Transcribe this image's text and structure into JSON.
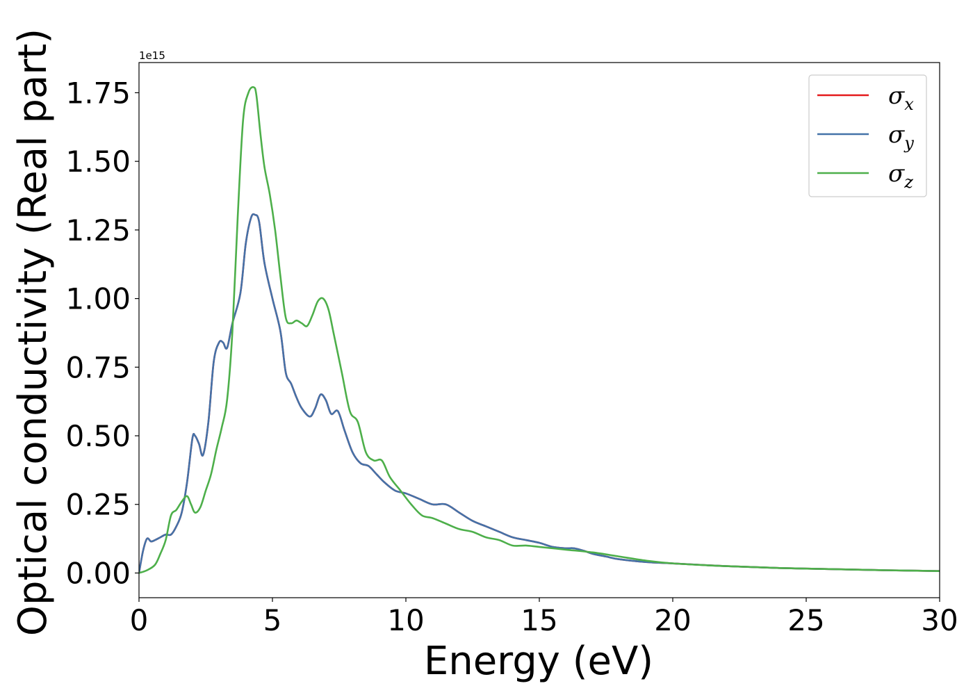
{
  "chart_data": {
    "type": "line",
    "xlabel": "Energy (eV)",
    "ylabel": "Optical conductivity (Real part)",
    "y_offset_label": "1e15",
    "xlim": [
      0,
      30
    ],
    "ylim": [
      -0.09,
      1.86
    ],
    "xticks": [
      0,
      5,
      10,
      15,
      20,
      25,
      30
    ],
    "xtick_labels": [
      "0",
      "5",
      "10",
      "15",
      "20",
      "25",
      "30"
    ],
    "yticks": [
      0.0,
      0.25,
      0.5,
      0.75,
      1.0,
      1.25,
      1.5,
      1.75
    ],
    "ytick_labels": [
      "0.00",
      "0.25",
      "0.50",
      "0.75",
      "1.00",
      "1.25",
      "1.50",
      "1.75"
    ],
    "grid": false,
    "legend_position": "upper right",
    "series": [
      {
        "name": "σ",
        "subscript": "x",
        "color": "#e41a1c",
        "x": [
          0,
          0.15,
          0.3,
          0.45,
          0.6,
          0.8,
          1.0,
          1.2,
          1.4,
          1.6,
          1.8,
          2.0,
          2.1,
          2.25,
          2.4,
          2.6,
          2.8,
          3.0,
          3.15,
          3.3,
          3.5,
          3.8,
          4.0,
          4.2,
          4.35,
          4.5,
          4.7,
          5.0,
          5.3,
          5.5,
          5.7,
          5.9,
          6.1,
          6.4,
          6.6,
          6.8,
          7.0,
          7.2,
          7.45,
          7.7,
          8.0,
          8.3,
          8.6,
          8.9,
          9.2,
          9.6,
          10.0,
          10.5,
          11.0,
          11.5,
          12.0,
          12.5,
          13.0,
          13.5,
          14.0,
          14.5,
          15.0,
          15.5,
          16.0,
          16.3,
          16.7,
          17.0,
          17.5,
          18.0,
          19.0,
          20.0,
          22.0,
          24.0,
          26.0,
          28.0,
          30.0
        ],
        "y": [
          0.0,
          0.08,
          0.125,
          0.115,
          0.12,
          0.13,
          0.14,
          0.14,
          0.17,
          0.22,
          0.33,
          0.49,
          0.5,
          0.47,
          0.43,
          0.55,
          0.77,
          0.84,
          0.84,
          0.82,
          0.91,
          1.02,
          1.2,
          1.295,
          1.305,
          1.28,
          1.13,
          1.0,
          0.88,
          0.73,
          0.69,
          0.64,
          0.6,
          0.57,
          0.6,
          0.65,
          0.63,
          0.58,
          0.59,
          0.52,
          0.44,
          0.4,
          0.39,
          0.36,
          0.33,
          0.3,
          0.29,
          0.27,
          0.25,
          0.25,
          0.22,
          0.19,
          0.17,
          0.15,
          0.13,
          0.12,
          0.11,
          0.095,
          0.09,
          0.09,
          0.08,
          0.07,
          0.06,
          0.05,
          0.04,
          0.035,
          0.025,
          0.018,
          0.014,
          0.01,
          0.007
        ]
      },
      {
        "name": "σ",
        "subscript": "y",
        "color": "#4472a8",
        "x": [
          0,
          0.15,
          0.3,
          0.45,
          0.6,
          0.8,
          1.0,
          1.2,
          1.4,
          1.6,
          1.8,
          2.0,
          2.1,
          2.25,
          2.4,
          2.6,
          2.8,
          3.0,
          3.15,
          3.3,
          3.5,
          3.8,
          4.0,
          4.2,
          4.35,
          4.5,
          4.7,
          5.0,
          5.3,
          5.5,
          5.7,
          5.9,
          6.1,
          6.4,
          6.6,
          6.8,
          7.0,
          7.2,
          7.45,
          7.7,
          8.0,
          8.3,
          8.6,
          8.9,
          9.2,
          9.6,
          10.0,
          10.5,
          11.0,
          11.5,
          12.0,
          12.5,
          13.0,
          13.5,
          14.0,
          14.5,
          15.0,
          15.5,
          16.0,
          16.3,
          16.7,
          17.0,
          17.5,
          18.0,
          19.0,
          20.0,
          22.0,
          24.0,
          26.0,
          28.0,
          30.0
        ],
        "y": [
          0.0,
          0.08,
          0.125,
          0.115,
          0.12,
          0.13,
          0.14,
          0.14,
          0.17,
          0.22,
          0.33,
          0.49,
          0.5,
          0.47,
          0.43,
          0.55,
          0.77,
          0.84,
          0.84,
          0.82,
          0.91,
          1.02,
          1.2,
          1.295,
          1.305,
          1.28,
          1.13,
          1.0,
          0.88,
          0.73,
          0.69,
          0.64,
          0.6,
          0.57,
          0.6,
          0.65,
          0.63,
          0.58,
          0.59,
          0.52,
          0.44,
          0.4,
          0.39,
          0.36,
          0.33,
          0.3,
          0.29,
          0.27,
          0.25,
          0.25,
          0.22,
          0.19,
          0.17,
          0.15,
          0.13,
          0.12,
          0.11,
          0.095,
          0.09,
          0.09,
          0.08,
          0.07,
          0.06,
          0.05,
          0.04,
          0.035,
          0.025,
          0.018,
          0.014,
          0.01,
          0.007
        ]
      },
      {
        "name": "σ",
        "subscript": "z",
        "color": "#4daf4a",
        "x": [
          0,
          0.3,
          0.6,
          0.8,
          1.0,
          1.2,
          1.4,
          1.6,
          1.8,
          1.95,
          2.1,
          2.3,
          2.5,
          2.7,
          2.9,
          3.1,
          3.3,
          3.5,
          3.7,
          3.9,
          4.1,
          4.3,
          4.4,
          4.55,
          4.7,
          4.9,
          5.1,
          5.3,
          5.5,
          5.7,
          5.9,
          6.1,
          6.3,
          6.5,
          6.7,
          6.9,
          7.1,
          7.3,
          7.6,
          7.9,
          8.2,
          8.5,
          8.8,
          9.1,
          9.4,
          9.8,
          10.2,
          10.6,
          11.0,
          11.5,
          12.0,
          12.5,
          13.0,
          13.5,
          14.0,
          14.5,
          15.0,
          16.0,
          17.0,
          18.0,
          19.0,
          20.0,
          22.0,
          24.0,
          26.0,
          28.0,
          30.0
        ],
        "y": [
          0.0,
          0.01,
          0.03,
          0.07,
          0.12,
          0.21,
          0.23,
          0.26,
          0.28,
          0.25,
          0.22,
          0.24,
          0.3,
          0.36,
          0.45,
          0.53,
          0.63,
          0.88,
          1.3,
          1.65,
          1.75,
          1.77,
          1.74,
          1.6,
          1.48,
          1.38,
          1.25,
          1.08,
          0.93,
          0.91,
          0.92,
          0.91,
          0.9,
          0.94,
          0.99,
          1.0,
          0.96,
          0.87,
          0.73,
          0.59,
          0.55,
          0.44,
          0.41,
          0.41,
          0.35,
          0.3,
          0.25,
          0.21,
          0.2,
          0.18,
          0.16,
          0.15,
          0.13,
          0.12,
          0.1,
          0.1,
          0.095,
          0.085,
          0.075,
          0.06,
          0.045,
          0.035,
          0.025,
          0.018,
          0.014,
          0.01,
          0.007
        ]
      }
    ]
  }
}
